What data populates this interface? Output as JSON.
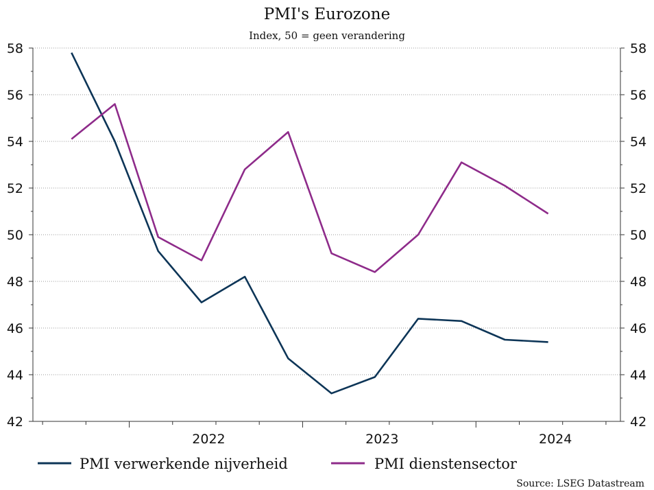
{
  "chart_data": {
    "type": "line",
    "title": "PMI's Eurozone",
    "subtitle": "Index, 50 = geen verandering",
    "source": "Source: LSEG Datastream",
    "ylim": [
      42,
      58
    ],
    "yticks": [
      "42",
      "44",
      "46",
      "48",
      "50",
      "52",
      "54",
      "56",
      "58"
    ],
    "grid": "horizontal-dotted",
    "legend_placement": "bottom",
    "x_years": [
      "2022",
      "2023",
      "2024"
    ],
    "x": [
      "2021-09",
      "2021-12",
      "2022-03",
      "2022-06",
      "2022-09",
      "2022-12",
      "2023-03",
      "2023-06",
      "2023-09",
      "2023-12",
      "2024-03",
      "2024-06"
    ],
    "series": [
      {
        "name": "PMI verwerkende nijverheid",
        "color": "#0d3557",
        "values": [
          57.8,
          54.0,
          49.3,
          47.1,
          48.2,
          44.7,
          43.2,
          43.9,
          46.4,
          46.3,
          45.5,
          45.4
        ]
      },
      {
        "name": "PMI dienstensector",
        "color": "#8e2b8a",
        "values": [
          54.1,
          55.6,
          49.9,
          48.9,
          52.8,
          54.4,
          49.2,
          48.4,
          50.0,
          53.1,
          52.1,
          50.9
        ]
      }
    ]
  }
}
